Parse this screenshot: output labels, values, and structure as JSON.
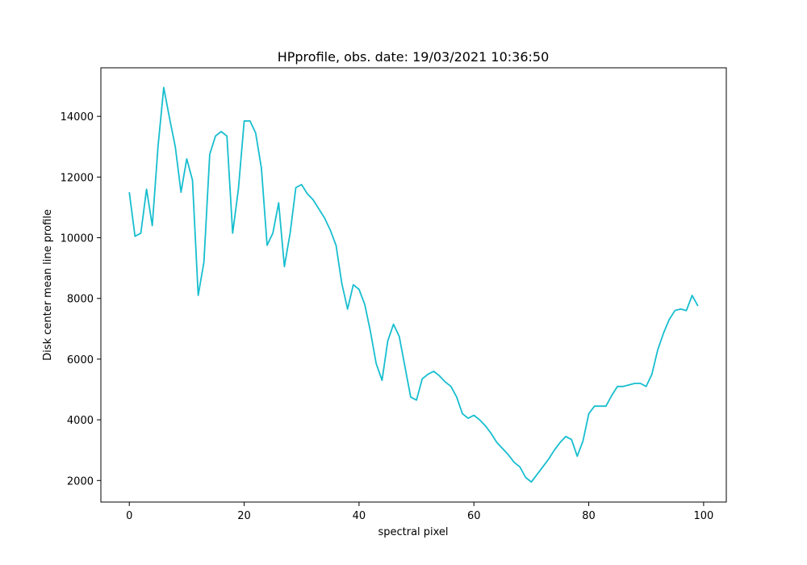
{
  "chart_data": {
    "type": "line",
    "title": "HPprofile, obs. date: 19/03/2021 10:36:50",
    "xlabel": "spectral pixel",
    "ylabel": "Disk center mean line profile",
    "xlim": [
      -4.95,
      103.95
    ],
    "ylim": [
      1290,
      15600
    ],
    "xticks": [
      0,
      20,
      40,
      60,
      80,
      100
    ],
    "yticks": [
      2000,
      4000,
      6000,
      8000,
      10000,
      12000,
      14000
    ],
    "grid": false,
    "legend": "none",
    "series": [
      {
        "color": "#17becf",
        "x": [
          0,
          1,
          2,
          3,
          4,
          5,
          6,
          7,
          8,
          9,
          10,
          11,
          12,
          13,
          14,
          15,
          16,
          17,
          18,
          19,
          20,
          21,
          22,
          23,
          24,
          25,
          26,
          27,
          28,
          29,
          30,
          31,
          32,
          33,
          34,
          35,
          36,
          37,
          38,
          39,
          40,
          41,
          42,
          43,
          44,
          45,
          46,
          47,
          48,
          49,
          50,
          51,
          52,
          53,
          54,
          55,
          56,
          57,
          58,
          59,
          60,
          61,
          62,
          63,
          64,
          65,
          66,
          67,
          68,
          69,
          70,
          71,
          72,
          73,
          74,
          75,
          76,
          77,
          78,
          79,
          80,
          81,
          82,
          83,
          84,
          85,
          86,
          87,
          88,
          89,
          90,
          91,
          92,
          93,
          94,
          95,
          96,
          97,
          98,
          99
        ],
        "y": [
          11500,
          10050,
          10150,
          11600,
          10400,
          13000,
          14950,
          13950,
          13000,
          11500,
          12600,
          11900,
          8100,
          9200,
          12750,
          13350,
          13500,
          13350,
          10150,
          11600,
          13850,
          13850,
          13450,
          12300,
          9750,
          10150,
          11150,
          9050,
          10150,
          11650,
          11750,
          11450,
          11250,
          10950,
          10650,
          10250,
          9750,
          8500,
          7650,
          8450,
          8300,
          7800,
          6900,
          5850,
          5300,
          6600,
          7150,
          6750,
          5750,
          4750,
          4650,
          5350,
          5500,
          5600,
          5450,
          5250,
          5100,
          4750,
          4200,
          4050,
          4150,
          4000,
          3800,
          3550,
          3250,
          3050,
          2850,
          2600,
          2450,
          2100,
          1950,
          2200,
          2450,
          2700,
          3000,
          3250,
          3450,
          3350,
          2800,
          3300,
          4200,
          4450,
          4450,
          4450,
          4800,
          5100,
          5100,
          5150,
          5200,
          5200,
          5100,
          5500,
          6300,
          6850,
          7300,
          7600,
          7650,
          7600,
          8100,
          7750
        ]
      }
    ]
  }
}
